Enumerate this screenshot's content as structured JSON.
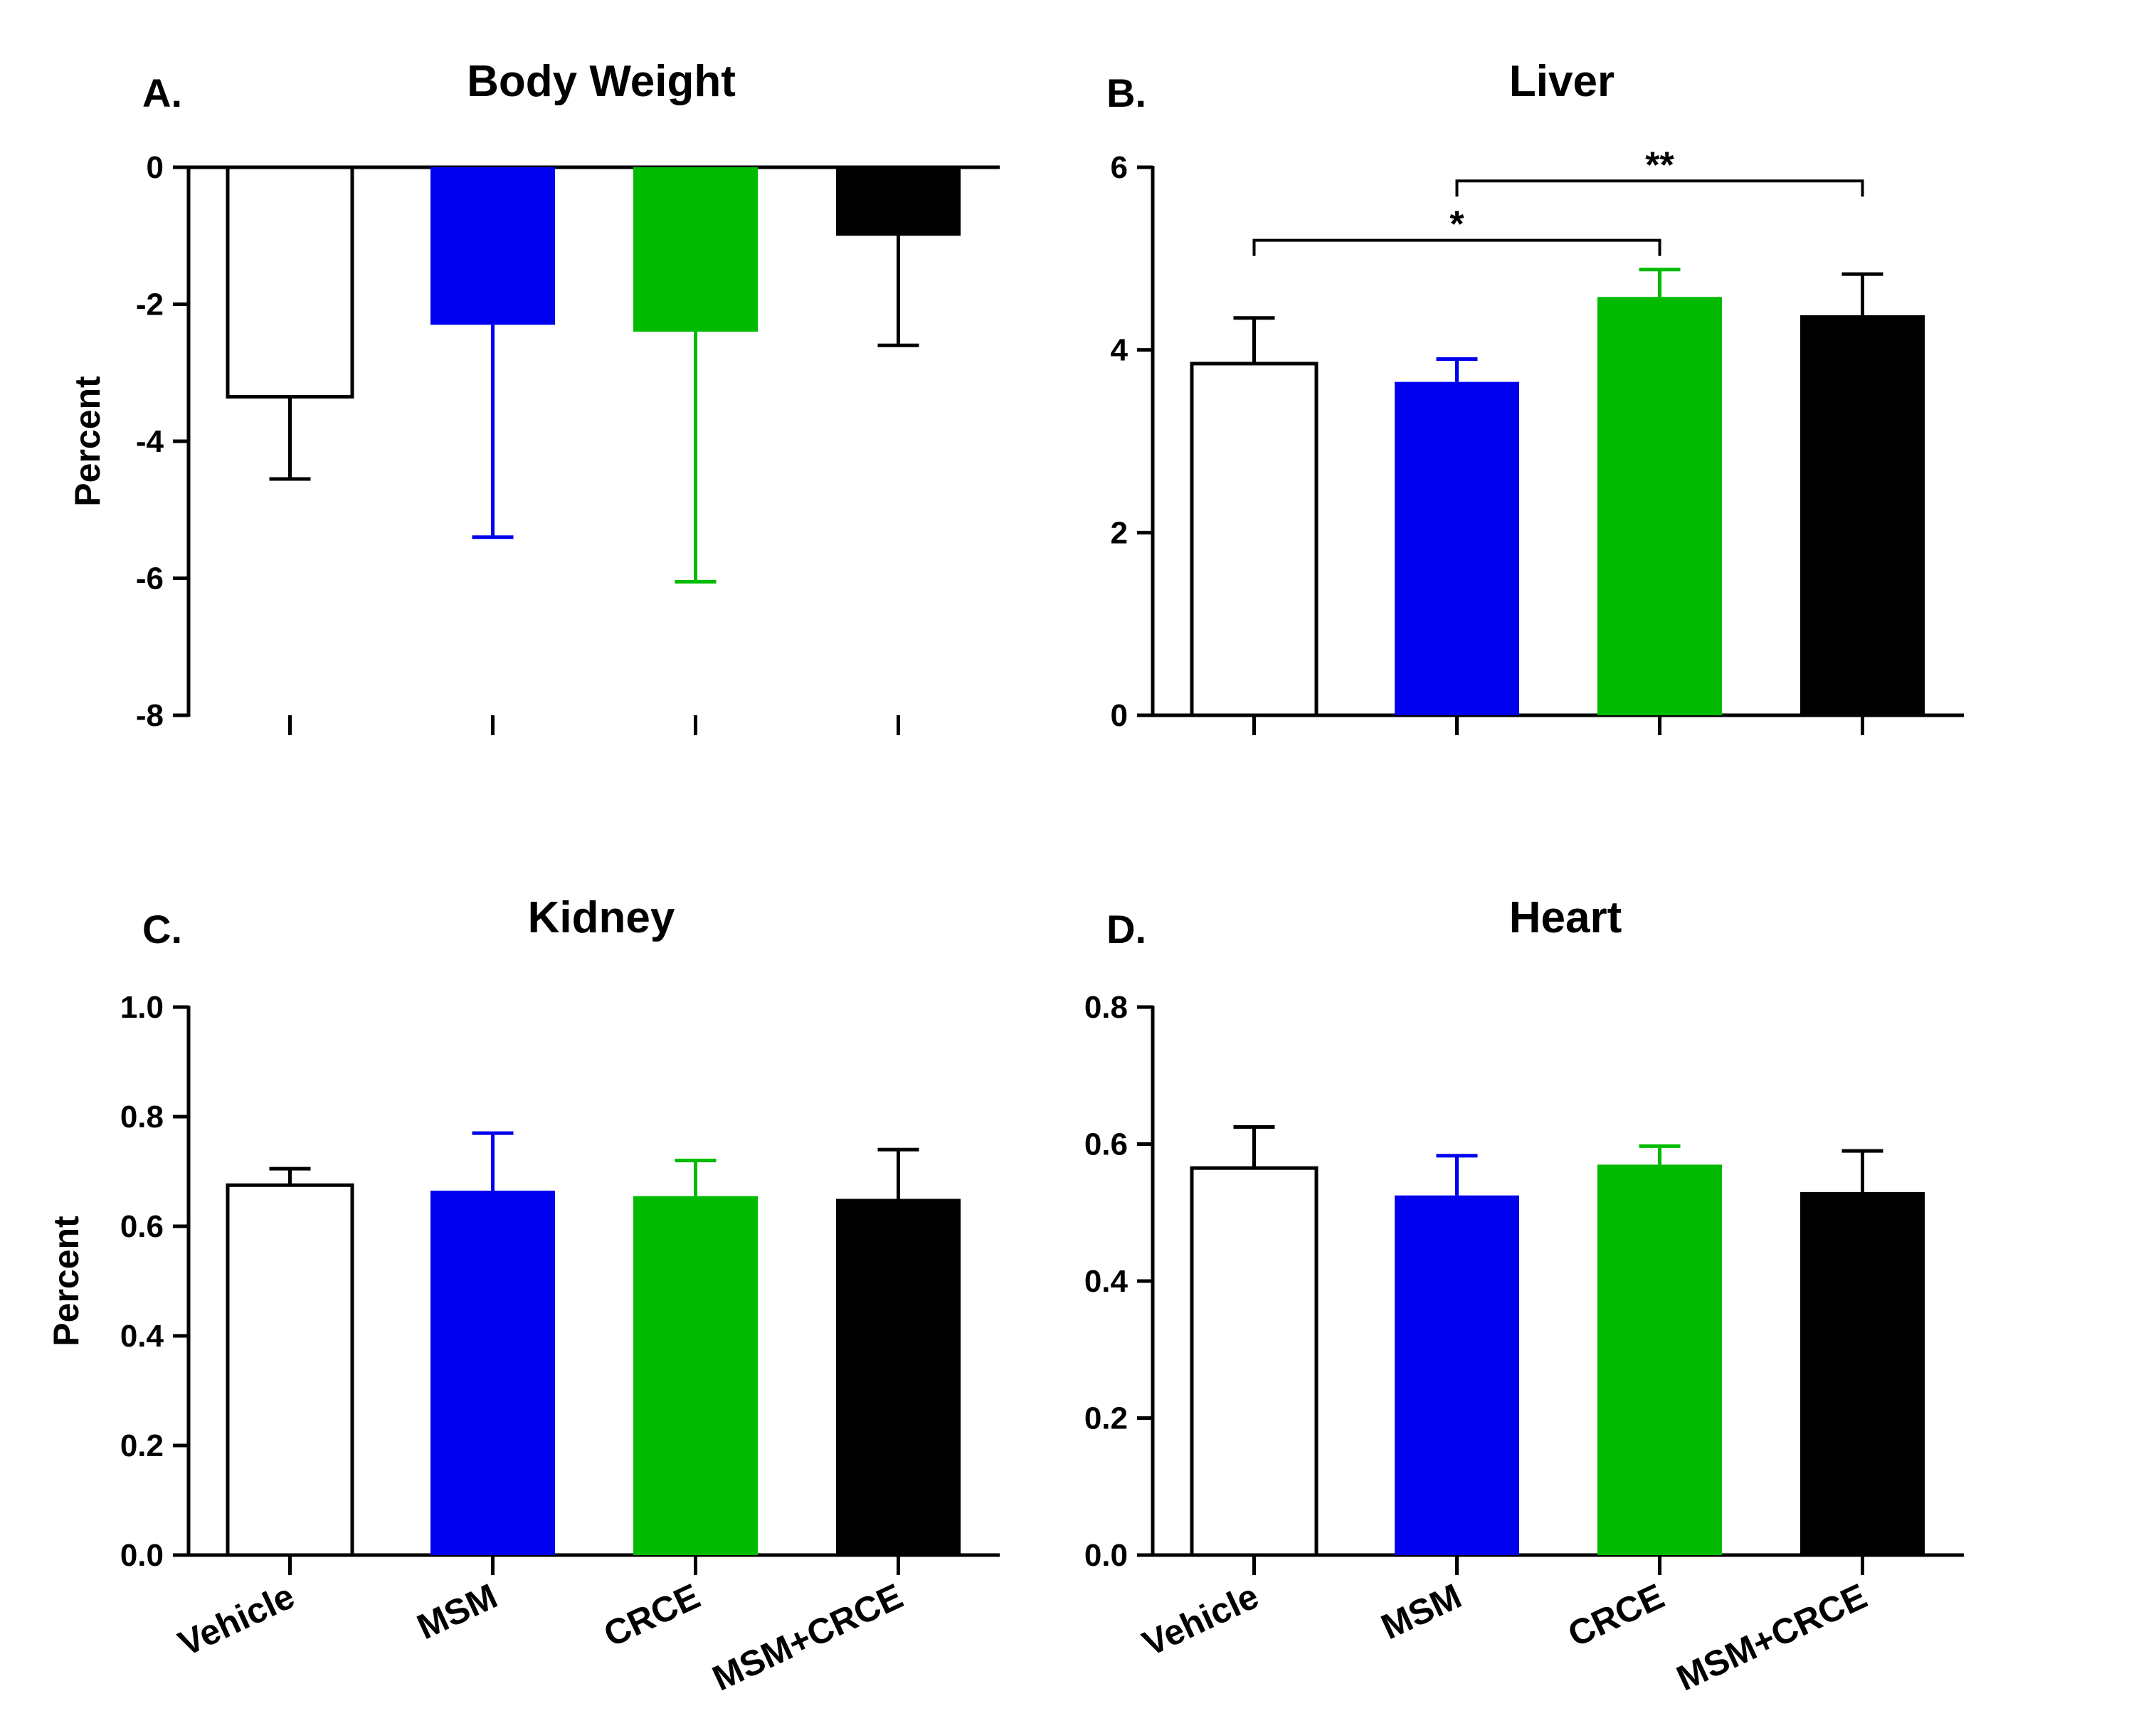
{
  "chart_data": [
    {
      "panel": "A.",
      "type": "bar",
      "title": "Body Weight",
      "ylabel": "Percent",
      "ylim": [
        -8,
        0
      ],
      "yticks": [
        0,
        -2,
        -4,
        -6,
        -8
      ],
      "ytick_labels": [
        "0",
        "-2",
        "-4",
        "-6",
        "-8"
      ],
      "categories": [
        "Vehicle",
        "MSM",
        "CRCE",
        "MSM+CRCE"
      ],
      "values": [
        -3.35,
        -2.3,
        -2.4,
        -1.0
      ],
      "errors": [
        1.2,
        3.1,
        3.65,
        1.6
      ],
      "show_category_labels": false,
      "significance": []
    },
    {
      "panel": "B.",
      "type": "bar",
      "title": "Liver",
      "ylabel": "",
      "ylim": [
        0,
        6
      ],
      "yticks": [
        0,
        2,
        4,
        6
      ],
      "ytick_labels": [
        "0",
        "2",
        "4",
        "6"
      ],
      "categories": [
        "Vehicle",
        "MSM",
        "CRCE",
        "MSM+CRCE"
      ],
      "values": [
        3.85,
        3.65,
        4.58,
        4.38
      ],
      "errors": [
        0.5,
        0.25,
        0.3,
        0.45
      ],
      "show_category_labels": false,
      "significance": [
        {
          "from": 0,
          "to": 2,
          "label": "*",
          "y": 5.2
        },
        {
          "from": 1,
          "to": 3,
          "label": "**",
          "y": 5.85
        }
      ]
    },
    {
      "panel": "C.",
      "type": "bar",
      "title": "Kidney",
      "ylabel": "Percent",
      "ylim": [
        0,
        1.0
      ],
      "yticks": [
        0,
        0.2,
        0.4,
        0.6,
        0.8,
        1.0
      ],
      "ytick_labels": [
        "0.0",
        "0.2",
        "0.4",
        "0.6",
        "0.8",
        "1.0"
      ],
      "categories": [
        "Vehicle",
        "MSM",
        "CRCE",
        "MSM+CRCE"
      ],
      "values": [
        0.675,
        0.665,
        0.655,
        0.65
      ],
      "errors": [
        0.03,
        0.105,
        0.065,
        0.09
      ],
      "show_category_labels": true,
      "significance": []
    },
    {
      "panel": "D.",
      "type": "bar",
      "title": "Heart",
      "ylabel": "",
      "ylim": [
        0,
        0.8
      ],
      "yticks": [
        0,
        0.2,
        0.4,
        0.6,
        0.8
      ],
      "ytick_labels": [
        "0.0",
        "0.2",
        "0.4",
        "0.6",
        "0.8"
      ],
      "categories": [
        "Vehicle",
        "MSM",
        "CRCE",
        "MSM+CRCE"
      ],
      "values": [
        0.565,
        0.525,
        0.57,
        0.53
      ],
      "errors": [
        0.06,
        0.058,
        0.027,
        0.06
      ],
      "show_category_labels": true,
      "significance": []
    }
  ],
  "colors": {
    "bars": [
      "#ffffff",
      "#0000ee",
      "#00bb00",
      "#000000"
    ],
    "errors": [
      "#000000",
      "#0000ee",
      "#00bb00",
      "#000000"
    ],
    "outline": "#000000"
  }
}
